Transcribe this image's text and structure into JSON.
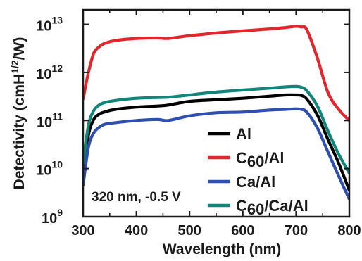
{
  "chart_data": {
    "type": "line",
    "title": "",
    "xlabel": "Wavelength (nm)",
    "ylabel": {
      "main": "Detectivity (cmH",
      "superscript": "1/2",
      "tail": "/W)"
    },
    "xlim": [
      300,
      800
    ],
    "ylim": [
      1000000000.0,
      20000000000000.0
    ],
    "yscale": "log",
    "x_ticks": [
      {
        "value": 300,
        "label": "300"
      },
      {
        "value": 400,
        "label": "400"
      },
      {
        "value": 500,
        "label": "500"
      },
      {
        "value": 600,
        "label": "600"
      },
      {
        "value": 700,
        "label": "700"
      },
      {
        "value": 800,
        "label": "800"
      }
    ],
    "y_ticks": [
      {
        "value": 1000000000.0,
        "base": "10",
        "exp": "9"
      },
      {
        "value": 10000000000.0,
        "base": "10",
        "exp": "10"
      },
      {
        "value": 100000000000.0,
        "base": "10",
        "exp": "11"
      },
      {
        "value": 1000000000000.0,
        "base": "10",
        "exp": "12"
      },
      {
        "value": 10000000000000.0,
        "base": "10",
        "exp": "13"
      }
    ],
    "grid": false,
    "legend_position": "bottom-right",
    "annotation": "320 nm, -0.5 V",
    "x": [
      300,
      310,
      320,
      330,
      340,
      360,
      400,
      440,
      460,
      500,
      550,
      600,
      650,
      680,
      700,
      710,
      720,
      740,
      760,
      780,
      800
    ],
    "series": [
      {
        "name": "Al",
        "label_parts": [
          {
            "text": "Al",
            "sub": false
          }
        ],
        "color": "#000000",
        "values": [
          8000000000.0,
          50000000000.0,
          105000000000.0,
          135000000000.0,
          150000000000.0,
          170000000000.0,
          190000000000.0,
          200000000000.0,
          210000000000.0,
          250000000000.0,
          270000000000.0,
          290000000000.0,
          320000000000.0,
          340000000000.0,
          340000000000.0,
          330000000000.0,
          280000000000.0,
          130000000000.0,
          40000000000.0,
          13000000000.0,
          3500000000.0
        ]
      },
      {
        "name": "C60/Al",
        "label_parts": [
          {
            "text": "C",
            "sub": false
          },
          {
            "text": "60",
            "sub": true
          },
          {
            "text": "/Al",
            "sub": false
          }
        ],
        "color": "#e3262b",
        "values": [
          280000000000.0,
          1000000000000.0,
          2500000000000.0,
          3400000000000.0,
          4000000000000.0,
          4600000000000.0,
          5100000000000.0,
          5200000000000.0,
          5100000000000.0,
          5800000000000.0,
          6600000000000.0,
          7300000000000.0,
          8000000000000.0,
          8600000000000.0,
          9100000000000.0,
          8800000000000.0,
          7800000000000.0,
          2000000000000.0,
          380000000000.0,
          170000000000.0,
          100000000000.0
        ]
      },
      {
        "name": "Ca/Al",
        "label_parts": [
          {
            "text": "Ca/Al",
            "sub": false
          }
        ],
        "color": "#2f4fb0",
        "values": [
          4500000000.0,
          28000000000.0,
          55000000000.0,
          72000000000.0,
          83000000000.0,
          90000000000.0,
          100000000000.0,
          105000000000.0,
          100000000000.0,
          125000000000.0,
          145000000000.0,
          150000000000.0,
          165000000000.0,
          170000000000.0,
          175000000000.0,
          170000000000.0,
          150000000000.0,
          70000000000.0,
          22000000000.0,
          7000000000.0,
          2300000000.0
        ]
      },
      {
        "name": "C60/Ca/Al",
        "label_parts": [
          {
            "text": "C",
            "sub": false
          },
          {
            "text": "60",
            "sub": true
          },
          {
            "text": "/Ca/Al",
            "sub": false
          }
        ],
        "color": "#12857a",
        "values": [
          13000000000.0,
          80000000000.0,
          160000000000.0,
          210000000000.0,
          235000000000.0,
          260000000000.0,
          290000000000.0,
          300000000000.0,
          305000000000.0,
          340000000000.0,
          390000000000.0,
          430000000000.0,
          470000000000.0,
          500000000000.0,
          510000000000.0,
          490000000000.0,
          420000000000.0,
          200000000000.0,
          60000000000.0,
          20000000000.0,
          8000000000.0
        ]
      }
    ]
  }
}
